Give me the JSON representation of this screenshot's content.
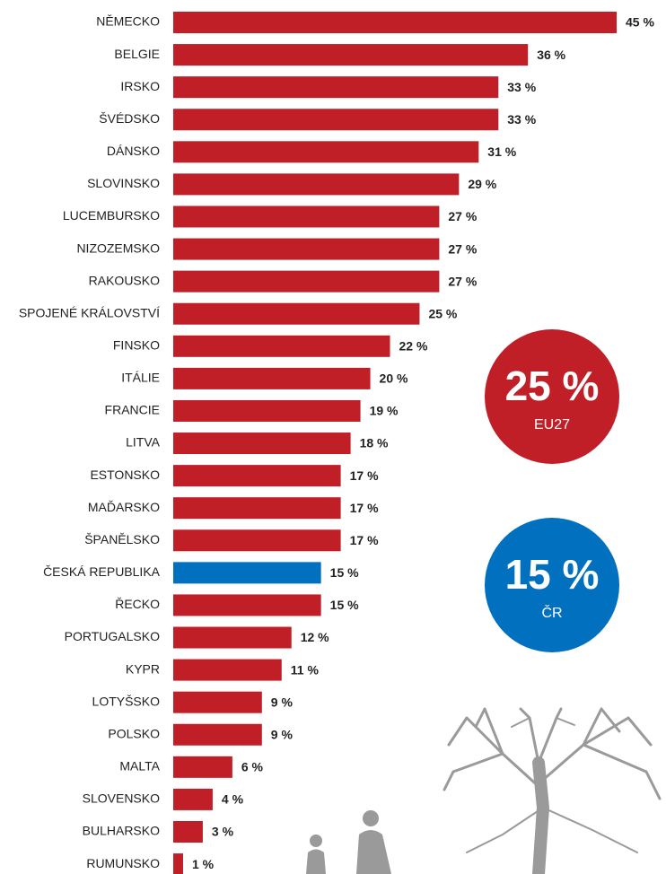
{
  "chart_data": {
    "type": "barh",
    "categories": [
      "NĚMECKO",
      "BELGIE",
      "IRSKO",
      "ŠVÉDSKO",
      "DÁNSKO",
      "SLOVINSKO",
      "LUCEMBURSKO",
      "NIZOZEMSKO",
      "RAKOUSKO",
      "SPOJENÉ KRÁLOVSTVÍ",
      "FINSKO",
      "ITÁLIE",
      "FRANCIE",
      "LITVA",
      "ESTONSKO",
      "MAĎARSKO",
      "ŠPANĚLSKO",
      "ČESKÁ REPUBLIKA",
      "ŘECKO",
      "PORTUGALSKO",
      "KYPR",
      "LOTYŠSKO",
      "POLSKO",
      "MALTA",
      "SLOVENSKO",
      "BULHARSKO",
      "RUMUNSKO"
    ],
    "values": [
      45,
      36,
      33,
      33,
      31,
      29,
      27,
      27,
      27,
      25,
      22,
      20,
      19,
      18,
      17,
      17,
      17,
      15,
      15,
      12,
      11,
      9,
      9,
      6,
      4,
      3,
      1
    ],
    "value_labels": [
      "45 %",
      "36 %",
      "33 %",
      "33 %",
      "31 %",
      "29 %",
      "27 %",
      "27 %",
      "27 %",
      "25 %",
      "22 %",
      "20 %",
      "19 %",
      "18 %",
      "17 %",
      "17 %",
      "17 %",
      "15 %",
      "15 %",
      "12 %",
      "11 %",
      "9 %",
      "9 %",
      "6 %",
      "4 %",
      "3 %",
      "1 %"
    ],
    "colors": [
      "#c01f28",
      "#c01f28",
      "#c01f28",
      "#c01f28",
      "#c01f28",
      "#c01f28",
      "#c01f28",
      "#c01f28",
      "#c01f28",
      "#c01f28",
      "#c01f28",
      "#c01f28",
      "#c01f28",
      "#c01f28",
      "#c01f28",
      "#c01f28",
      "#c01f28",
      "#0070bf",
      "#c01f28",
      "#c01f28",
      "#c01f28",
      "#c01f28",
      "#c01f28",
      "#c01f28",
      "#c01f28",
      "#c01f28",
      "#c01f28"
    ],
    "xlim": [
      0,
      45
    ],
    "annotations": [
      {
        "value": "25 %",
        "label": "EU27",
        "color": "#c01f28"
      },
      {
        "value": "15 %",
        "label": "ČR",
        "color": "#0070bf"
      }
    ]
  }
}
